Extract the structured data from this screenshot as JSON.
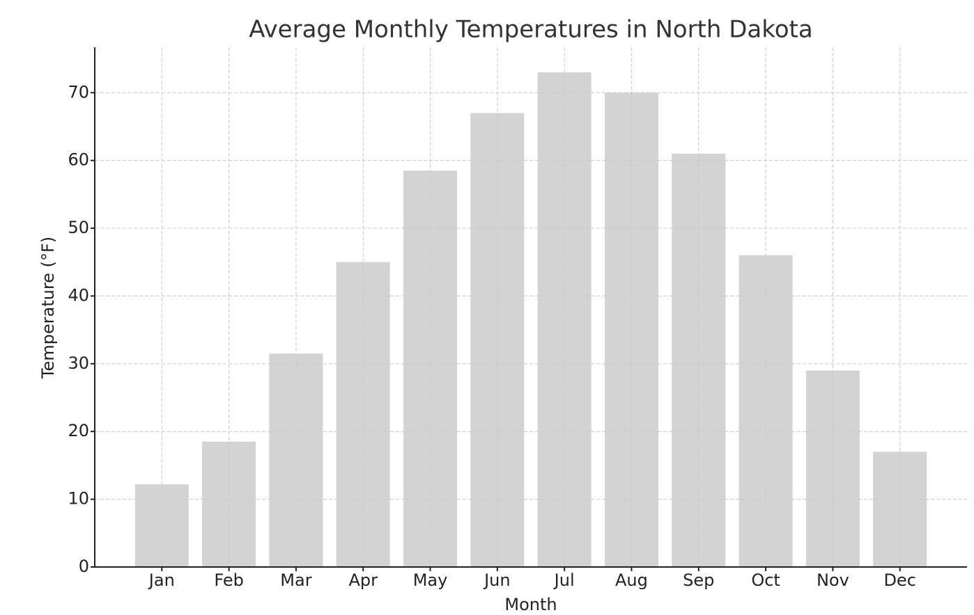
{
  "chart_data": {
    "type": "bar",
    "title": "Average Monthly Temperatures in North Dakota",
    "x_label": "Month",
    "y_label": "Temperature (°F)",
    "categories": [
      "Jan",
      "Feb",
      "Mar",
      "Apr",
      "May",
      "Jun",
      "Jul",
      "Aug",
      "Sep",
      "Oct",
      "Nov",
      "Dec"
    ],
    "values": [
      12.2,
      18.5,
      31.5,
      45,
      58.5,
      67,
      73,
      70,
      61,
      46,
      29,
      17
    ],
    "color": "#d3d3d3",
    "ylim": [
      0,
      76.7
    ],
    "yticks": [
      0,
      10,
      20,
      30,
      40,
      50,
      60,
      70
    ],
    "grid": true
  }
}
